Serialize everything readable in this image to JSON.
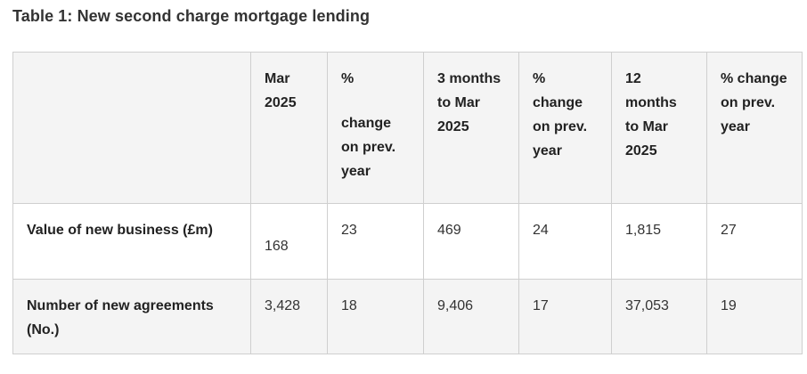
{
  "title": "Table 1: New second charge mortgage lending",
  "columns": [
    "",
    "Mar 2025",
    "%",
    "change on prev. year",
    "3 months to Mar 2025",
    "% change on prev. year",
    "12 months to Mar 2025",
    "% change on prev. year"
  ],
  "header": {
    "c1": "Mar 2025",
    "c2_top": "%",
    "c2_bottom": "change on prev. year",
    "c3": "3 months to Mar 2025",
    "c4": "% change on prev. year",
    "c5": "12 months to Mar 2025",
    "c6": "% change on prev. year"
  },
  "rows": [
    {
      "label": "Value of new business (£m)",
      "mar_2025": "168",
      "pct_1": "23",
      "three_months": "469",
      "pct_2": "24",
      "twelve_months": "1,815",
      "pct_3": "27"
    },
    {
      "label": "Number of new agreements (No.)",
      "mar_2025": "3,428",
      "pct_1": "18",
      "three_months": "9,406",
      "pct_2": "17",
      "twelve_months": "37,053",
      "pct_3": "19"
    }
  ]
}
